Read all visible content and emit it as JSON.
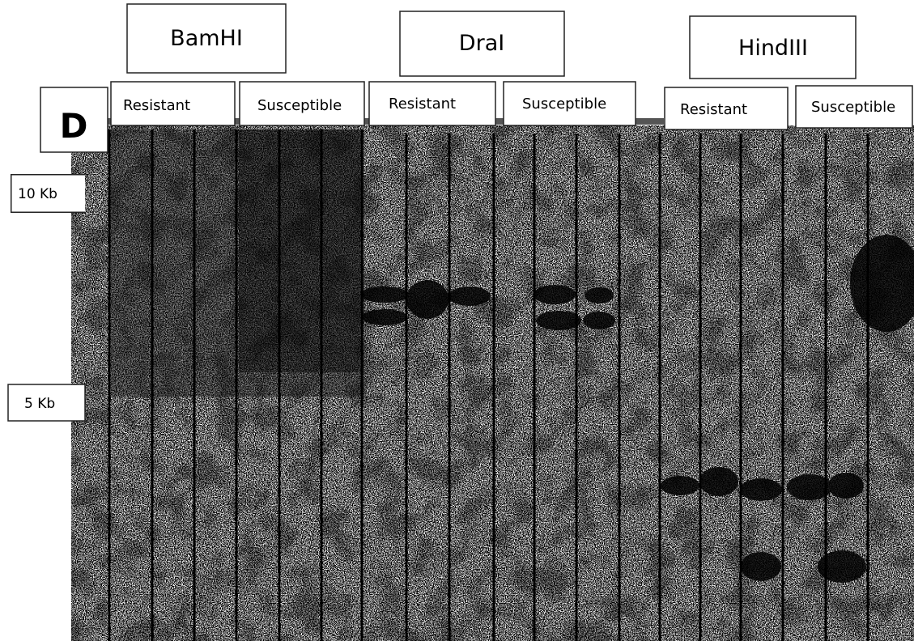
{
  "panel": "D",
  "enzymes": [
    {
      "name": "BamHI",
      "groups": [
        "Resistant",
        "Susceptible"
      ]
    },
    {
      "name": "DraI",
      "groups": [
        "Resistant",
        "Susceptible"
      ]
    },
    {
      "name": "HindIII",
      "groups": [
        "Resistant",
        "Susceptible"
      ]
    }
  ],
  "markers": [
    "10 Kb",
    "5 Kb"
  ]
}
